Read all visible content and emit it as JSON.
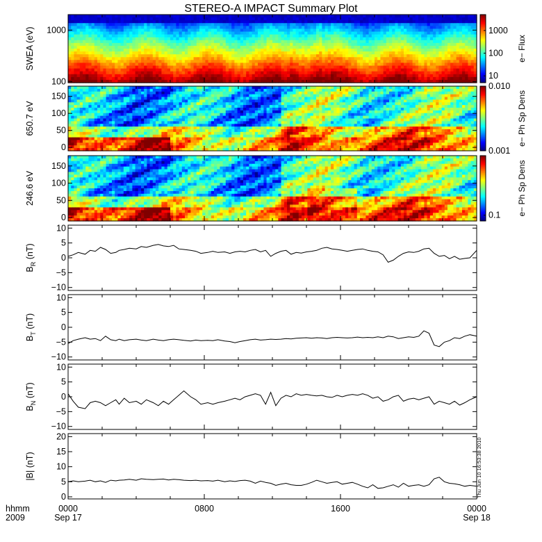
{
  "title": "STEREO-A IMPACT Summary Plot",
  "timestamp": "Thu Jun 10 16:53:38 2010",
  "footer": {
    "row1_label": "hhmm",
    "row2_label": "2009",
    "ticks": [
      {
        "hours": 0,
        "time": "0000",
        "date": "Sep 17"
      },
      {
        "hours": 8,
        "time": "0800",
        "date": ""
      },
      {
        "hours": 16,
        "time": "1600",
        "date": ""
      },
      {
        "hours": 24,
        "time": "0000",
        "date": "Sep 18"
      }
    ]
  },
  "chart_data": [
    {
      "type": "heatmap",
      "id": "swea",
      "ylabel": "SWEA (eV)",
      "yscale": "log",
      "ylim": [
        95,
        2000
      ],
      "yticks": [
        100,
        1000
      ],
      "ytick_labels": [
        "100",
        "1000"
      ],
      "colorbar": {
        "label": "e− Flux",
        "scale": "log",
        "range": [
          5,
          5000
        ],
        "ticks": [
          10,
          100,
          1000
        ],
        "tick_labels": [
          "10",
          "100",
          "1000"
        ]
      }
    },
    {
      "type": "heatmap",
      "id": "pad650",
      "ylabel": "650.7 eV",
      "ylim": [
        -10,
        180
      ],
      "yticks": [
        0,
        50,
        100,
        150
      ],
      "ytick_labels": [
        "0",
        "50",
        "100",
        "150"
      ],
      "colorbar": {
        "label": "e− Ph Sp Dens",
        "scale": "log",
        "range": [
          0.001,
          0.01
        ],
        "ticks": [
          0.001,
          0.01
        ],
        "tick_labels": [
          "0.001",
          "0.010"
        ]
      }
    },
    {
      "type": "heatmap",
      "id": "pad246",
      "ylabel": "246.6 eV",
      "ylim": [
        -10,
        180
      ],
      "yticks": [
        0,
        50,
        100,
        150
      ],
      "ytick_labels": [
        "0",
        "50",
        "100",
        "150"
      ],
      "colorbar": {
        "label": "e− Ph Sp Dens",
        "scale": "log",
        "range": [
          0.08,
          1.0
        ],
        "ticks": [
          0.1
        ],
        "tick_labels": [
          "0.1"
        ]
      }
    },
    {
      "type": "line",
      "id": "br",
      "ylabel": "B",
      "ylabel_sub": "R",
      "ylabel_unit": " (nT)",
      "ylim": [
        -11,
        11
      ],
      "yticks": [
        -10,
        -5,
        0,
        5,
        10
      ],
      "ytick_labels": [
        "−10",
        "−5",
        "0",
        "5",
        "10"
      ],
      "x": [
        0,
        0.3,
        0.6,
        1,
        1.3,
        1.6,
        1.9,
        2.2,
        2.5,
        2.8,
        3,
        3.3,
        3.6,
        4,
        4.3,
        4.6,
        5,
        5.3,
        5.6,
        5.9,
        6.2,
        6.5,
        6.8,
        7.2,
        7.5,
        7.8,
        8.2,
        8.5,
        8.8,
        9.2,
        9.5,
        9.8,
        10.1,
        10.4,
        10.7,
        11,
        11.3,
        11.6,
        11.9,
        12.2,
        12.5,
        12.8,
        13.1,
        13.4,
        13.7,
        14,
        14.3,
        14.6,
        14.9,
        15.2,
        15.5,
        15.8,
        16.1,
        16.4,
        16.7,
        17,
        17.3,
        17.6,
        17.9,
        18.2,
        18.5,
        18.8,
        19.1,
        19.4,
        19.7,
        20,
        20.3,
        20.6,
        20.9,
        21.2,
        21.5,
        21.8,
        22.1,
        22.4,
        22.7,
        23,
        23.3,
        23.6,
        24
      ],
      "values": [
        0.5,
        1,
        1.8,
        1.2,
        2.5,
        2.2,
        3.5,
        2.8,
        1.5,
        1.8,
        2.5,
        2.8,
        3.2,
        3,
        3.8,
        3.5,
        4.2,
        4.5,
        4,
        3.8,
        4.2,
        3,
        2.8,
        2.5,
        2.2,
        1.5,
        1.8,
        2.2,
        1.8,
        2,
        1.5,
        2,
        2.2,
        2,
        2.5,
        2.8,
        2,
        2.5,
        0.5,
        1.5,
        2.2,
        2.5,
        1.2,
        1.8,
        1.6,
        2,
        2.2,
        2.5,
        3.2,
        3.5,
        3,
        2.8,
        2.5,
        2.2,
        2.5,
        2.8,
        3,
        2.5,
        2.2,
        2,
        1,
        -1.5,
        -0.8,
        0.5,
        1.5,
        2,
        1.8,
        2.2,
        3,
        3.2,
        1.5,
        0.5,
        0.8,
        -0.3,
        0.5,
        -0.5,
        -0.2,
        0,
        2.5
      ]
    },
    {
      "type": "line",
      "id": "bt",
      "ylabel": "B",
      "ylabel_sub": "T",
      "ylabel_unit": " (nT)",
      "ylim": [
        -11,
        11
      ],
      "yticks": [
        -10,
        -5,
        0,
        5,
        10
      ],
      "ytick_labels": [
        "−10",
        "−5",
        "0",
        "5",
        "10"
      ],
      "x": [
        0,
        0.3,
        0.6,
        1,
        1.3,
        1.6,
        1.9,
        2.2,
        2.5,
        2.8,
        3,
        3.3,
        3.6,
        4,
        4.3,
        4.6,
        5,
        5.3,
        5.6,
        5.9,
        6.2,
        6.5,
        6.8,
        7.2,
        7.5,
        7.8,
        8.2,
        8.5,
        8.8,
        9.2,
        9.5,
        9.8,
        10.1,
        10.4,
        10.7,
        11,
        11.3,
        11.6,
        11.9,
        12.2,
        12.5,
        12.8,
        13.1,
        13.4,
        13.7,
        14,
        14.3,
        14.6,
        14.9,
        15.2,
        15.5,
        15.8,
        16.1,
        16.4,
        16.7,
        17,
        17.3,
        17.6,
        17.9,
        18.2,
        18.5,
        18.8,
        19.1,
        19.4,
        19.7,
        20,
        20.3,
        20.6,
        20.9,
        21.2,
        21.5,
        21.8,
        22.1,
        22.4,
        22.7,
        23,
        23.3,
        23.6,
        24
      ],
      "values": [
        -5.5,
        -4.5,
        -4,
        -3.5,
        -4,
        -3.8,
        -4.5,
        -3,
        -4.2,
        -4.5,
        -4,
        -4.5,
        -4.2,
        -4,
        -4.3,
        -4.5,
        -4,
        -4.3,
        -4.5,
        -4.2,
        -4,
        -4.2,
        -4.4,
        -4.6,
        -4.3,
        -4.5,
        -4.4,
        -4.5,
        -4.2,
        -4.6,
        -4.8,
        -5.2,
        -4.8,
        -4.5,
        -4.2,
        -4,
        -4.3,
        -4.2,
        -4,
        -4.1,
        -4,
        -3.8,
        -3.9,
        -3.7,
        -3.6,
        -3.5,
        -3.7,
        -3.5,
        -3.6,
        -3.8,
        -3.5,
        -3.4,
        -3.5,
        -3.6,
        -3.5,
        -3.3,
        -3.5,
        -3.4,
        -3.5,
        -3.2,
        -3.5,
        -3,
        -3.2,
        -3.8,
        -3.5,
        -3.2,
        -3.4,
        -3,
        -1.2,
        -2,
        -6,
        -6.5,
        -5,
        -4.5,
        -3.5,
        -3.8,
        -3,
        -2.5,
        -3
      ]
    },
    {
      "type": "line",
      "id": "bn",
      "ylabel": "B",
      "ylabel_sub": "N",
      "ylabel_unit": " (nT)",
      "ylim": [
        -11,
        11
      ],
      "yticks": [
        -10,
        -5,
        0,
        5,
        10
      ],
      "ytick_labels": [
        "−10",
        "−5",
        "0",
        "5",
        "10"
      ],
      "x": [
        0,
        0.3,
        0.6,
        1,
        1.3,
        1.6,
        1.9,
        2.2,
        2.5,
        2.8,
        3,
        3.3,
        3.6,
        4,
        4.3,
        4.6,
        5,
        5.3,
        5.6,
        5.9,
        6.2,
        6.5,
        6.8,
        7.2,
        7.5,
        7.8,
        8.2,
        8.5,
        8.8,
        9.2,
        9.5,
        9.8,
        10.1,
        10.4,
        10.7,
        11,
        11.3,
        11.6,
        11.9,
        12.2,
        12.5,
        12.8,
        13.1,
        13.4,
        13.7,
        14,
        14.3,
        14.6,
        14.9,
        15.2,
        15.5,
        15.8,
        16.1,
        16.4,
        16.7,
        17,
        17.3,
        17.6,
        17.9,
        18.2,
        18.5,
        18.8,
        19.1,
        19.4,
        19.7,
        20,
        20.3,
        20.6,
        20.9,
        21.2,
        21.5,
        21.8,
        22.1,
        22.4,
        22.7,
        23,
        23.3,
        23.6,
        24
      ],
      "values": [
        1,
        -1.5,
        -3.5,
        -4,
        -2,
        -1.5,
        -2,
        -3,
        -2,
        -1,
        -2.5,
        -0.5,
        -2,
        -1.5,
        -2.5,
        -1,
        -2,
        -3,
        -1.5,
        -2.5,
        -1,
        0.5,
        2,
        0,
        -1,
        -2.5,
        -2,
        -2.5,
        -2,
        -1.5,
        -1,
        -0.5,
        -1,
        0,
        0.5,
        1,
        0.5,
        -2.5,
        1.5,
        -3,
        -0.5,
        0.5,
        0,
        1,
        0.5,
        0.8,
        0.5,
        0.3,
        0.5,
        0,
        -0.2,
        0.5,
        0,
        0.5,
        0.8,
        0.5,
        1,
        0.5,
        -0.5,
        0,
        -1.5,
        -1,
        0,
        0.5,
        -1.5,
        -0.8,
        -0.5,
        -1,
        -0.5,
        0,
        -2.5,
        -1.5,
        -2,
        -2.5,
        -1.5,
        -2.8,
        -2,
        -1,
        0
      ]
    },
    {
      "type": "line",
      "id": "bmag",
      "ylabel": "|B| (nT)",
      "ylim": [
        -0.7,
        21
      ],
      "yticks": [
        0,
        5,
        10,
        15,
        20
      ],
      "ytick_labels": [
        "0",
        "5",
        "10",
        "15",
        "20"
      ],
      "x": [
        0,
        0.3,
        0.6,
        1,
        1.3,
        1.6,
        1.9,
        2.2,
        2.5,
        2.8,
        3,
        3.3,
        3.6,
        4,
        4.3,
        4.6,
        5,
        5.3,
        5.6,
        5.9,
        6.2,
        6.5,
        6.8,
        7.2,
        7.5,
        7.8,
        8.2,
        8.5,
        8.8,
        9.2,
        9.5,
        9.8,
        10.1,
        10.4,
        10.7,
        11,
        11.3,
        11.6,
        11.9,
        12.2,
        12.5,
        12.8,
        13.1,
        13.4,
        13.7,
        14,
        14.3,
        14.6,
        14.9,
        15.2,
        15.5,
        15.8,
        16.1,
        16.4,
        16.7,
        17,
        17.3,
        17.6,
        17.9,
        18.2,
        18.5,
        18.8,
        19.1,
        19.4,
        19.7,
        20,
        20.3,
        20.6,
        20.9,
        21.2,
        21.5,
        21.8,
        22.1,
        22.4,
        22.7,
        23,
        23.3,
        23.6,
        24
      ],
      "values": [
        5,
        5.3,
        5,
        5.2,
        5.5,
        5,
        5.3,
        4.8,
        5.5,
        5.3,
        5.5,
        5.6,
        5.8,
        5.5,
        6,
        5.8,
        5.7,
        5.8,
        5.9,
        5.6,
        5.8,
        5.7,
        5.5,
        5.4,
        5.5,
        5.3,
        5.4,
        5.2,
        5.5,
        5,
        5.3,
        5.1,
        5.4,
        5.5,
        5.2,
        4.5,
        5.2,
        4.8,
        4.5,
        3.8,
        4.2,
        4.5,
        4,
        3.8,
        3.8,
        4.2,
        4.8,
        5.5,
        5,
        4.5,
        4.8,
        5,
        4.2,
        4.5,
        4.8,
        4.2,
        3.5,
        3,
        4,
        2.8,
        3,
        3.5,
        4,
        3.2,
        4.5,
        3.5,
        3.8,
        4,
        3.5,
        4,
        6,
        6.5,
        5,
        4.5,
        4.3,
        4,
        3.5,
        3.8,
        3.5
      ]
    }
  ]
}
